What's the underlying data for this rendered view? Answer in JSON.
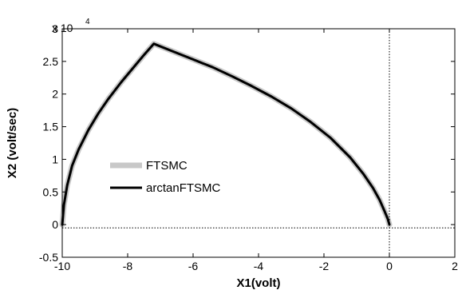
{
  "chart_data": {
    "type": "line",
    "xlabel": "X1(volt)",
    "ylabel": "X2 (volt/sec)",
    "xlim": [
      -10,
      2
    ],
    "ylim": [
      -0.5,
      3
    ],
    "y_multiplier": "x 10",
    "y_multiplier_exponent": "4",
    "xticks": [
      "-10",
      "-8",
      "-6",
      "-4",
      "-2",
      "0",
      "2"
    ],
    "yticks": [
      "-0.5",
      "0",
      "0.5",
      "1",
      "1.5",
      "2",
      "2.5",
      "3"
    ],
    "grid": false,
    "legend": "center-left",
    "reference_lines": {
      "x": 0,
      "y": -0.05
    },
    "series": [
      {
        "name": "FTSMC",
        "color": "#c8c8c8",
        "x": [
          -10.0,
          -9.95,
          -9.85,
          -9.7,
          -9.5,
          -9.2,
          -8.9,
          -8.6,
          -8.2,
          -7.8,
          -7.5,
          -7.2,
          -6.6,
          -6.0,
          -5.4,
          -4.8,
          -4.2,
          -3.6,
          -3.0,
          -2.4,
          -1.8,
          -1.2,
          -0.8,
          -0.5,
          -0.3,
          -0.15,
          -0.05,
          0.0
        ],
        "y": [
          0.0,
          0.3,
          0.6,
          0.9,
          1.15,
          1.45,
          1.7,
          1.92,
          2.18,
          2.42,
          2.6,
          2.77,
          2.65,
          2.53,
          2.41,
          2.27,
          2.12,
          1.96,
          1.78,
          1.57,
          1.33,
          1.03,
          0.78,
          0.56,
          0.38,
          0.21,
          0.09,
          0.0
        ]
      },
      {
        "name": "arctanFTSMC",
        "color": "#000000",
        "x": [
          -10.0,
          -9.95,
          -9.85,
          -9.7,
          -9.5,
          -9.2,
          -8.9,
          -8.6,
          -8.2,
          -7.8,
          -7.5,
          -7.2,
          -6.6,
          -6.0,
          -5.4,
          -4.8,
          -4.2,
          -3.6,
          -3.0,
          -2.4,
          -1.8,
          -1.2,
          -0.8,
          -0.5,
          -0.3,
          -0.15,
          -0.05,
          0.0
        ],
        "y": [
          0.0,
          0.3,
          0.6,
          0.9,
          1.15,
          1.45,
          1.7,
          1.92,
          2.18,
          2.42,
          2.6,
          2.77,
          2.65,
          2.53,
          2.41,
          2.27,
          2.12,
          1.96,
          1.78,
          1.57,
          1.33,
          1.03,
          0.78,
          0.56,
          0.38,
          0.21,
          0.09,
          0.0
        ]
      }
    ]
  }
}
